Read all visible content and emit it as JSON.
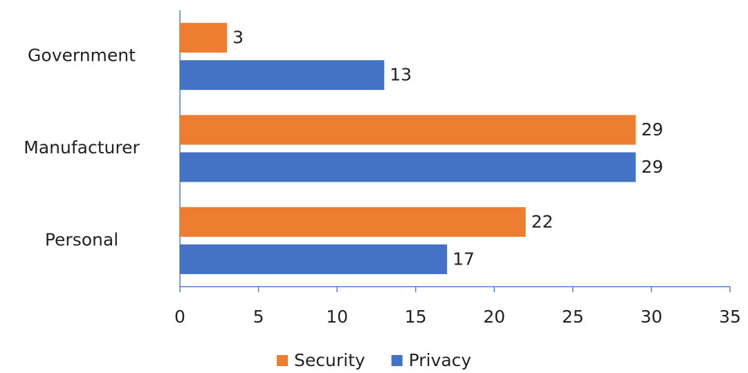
{
  "chart_data": {
    "type": "barh",
    "categories": [
      "Government",
      "Manufacturer",
      "Personal"
    ],
    "series": [
      {
        "name": "Security",
        "color": "#ed7d31",
        "values": [
          3,
          29,
          22
        ]
      },
      {
        "name": "Privacy",
        "color": "#4472c4",
        "values": [
          13,
          29,
          17
        ]
      }
    ],
    "xlim": [
      0,
      35
    ],
    "xticks": [
      0,
      5,
      10,
      15,
      20,
      25,
      30,
      35
    ],
    "legend": "bottom"
  }
}
